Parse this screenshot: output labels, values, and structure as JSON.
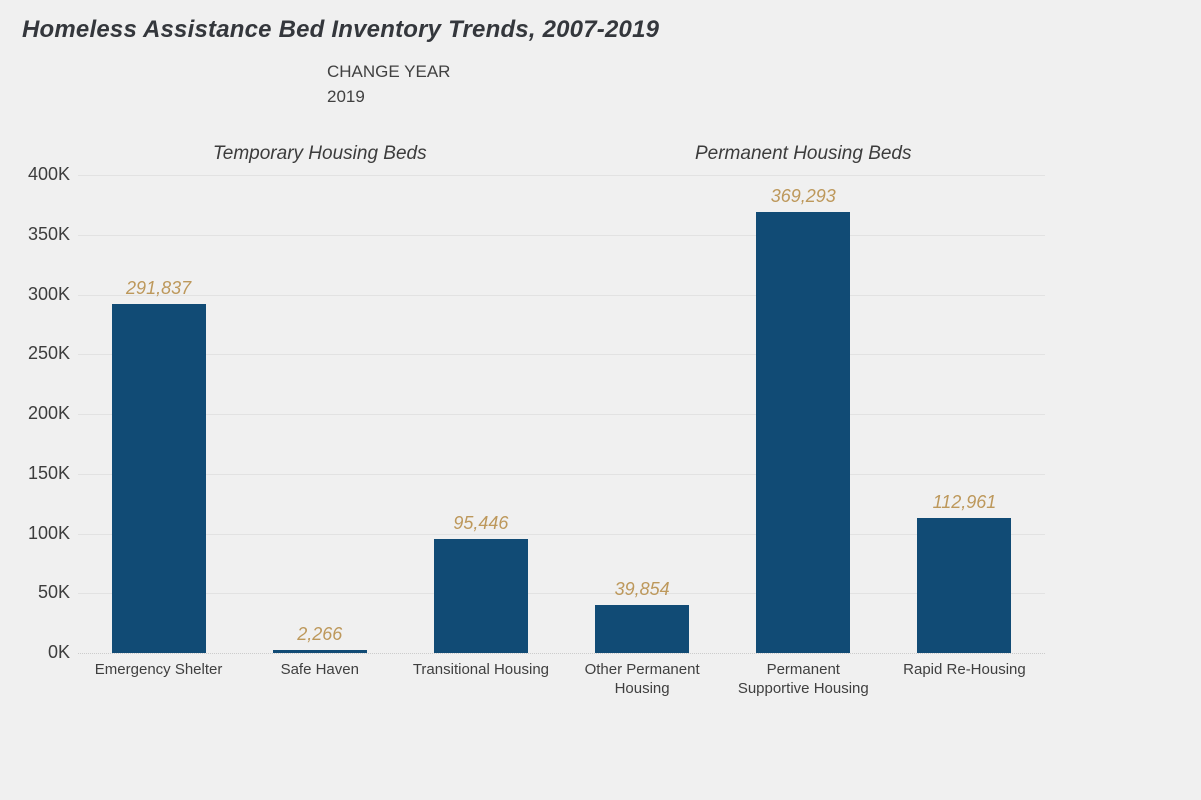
{
  "title": "Homeless Assistance Bed Inventory Trends, 2007-2019",
  "parameter_control": {
    "label": "CHANGE YEAR",
    "value": "2019"
  },
  "y_axis": {
    "ticks_top_to_bottom": [
      "400K",
      "350K",
      "300K",
      "250K",
      "200K",
      "150K",
      "100K",
      "50K",
      "0K"
    ]
  },
  "chart_data": {
    "type": "bar",
    "title": "Homeless Assistance Bed Inventory Trends, 2007-2019",
    "subtitle_parameter": "CHANGE YEAR 2019",
    "group_labels": [
      "Temporary Housing Beds",
      "Permanent Housing Beds"
    ],
    "groups_by_category": [
      "Temporary Housing Beds",
      "Temporary Housing Beds",
      "Temporary Housing Beds",
      "Permanent Housing Beds",
      "Permanent Housing Beds",
      "Permanent Housing Beds"
    ],
    "categories": [
      "Emergency Shelter",
      "Safe Haven",
      "Transitional Housing",
      "Other Permanent Housing",
      "Permanent Supportive Housing",
      "Rapid Re-Housing"
    ],
    "category_display": [
      "Emergency Shelter",
      "Safe Haven",
      "Transitional Housing",
      "Other Permanent\nHousing",
      "Permanent\nSupportive Housing",
      "Rapid Re-Housing"
    ],
    "values": [
      291837,
      2266,
      95446,
      39854,
      369293,
      112961
    ],
    "value_labels": [
      "291,837",
      "2,266",
      "95,446",
      "39,854",
      "369,293",
      "112,961"
    ],
    "xlabel": "",
    "ylabel": "",
    "ylim": [
      0,
      400000
    ],
    "y_tick_labels": [
      "0K",
      "50K",
      "100K",
      "150K",
      "200K",
      "250K",
      "300K",
      "350K",
      "400K"
    ],
    "grid": true,
    "legend_position": "none",
    "bar_color": "#114B75",
    "value_label_color": "#BD985B",
    "background_color": "#F0F0F0"
  }
}
